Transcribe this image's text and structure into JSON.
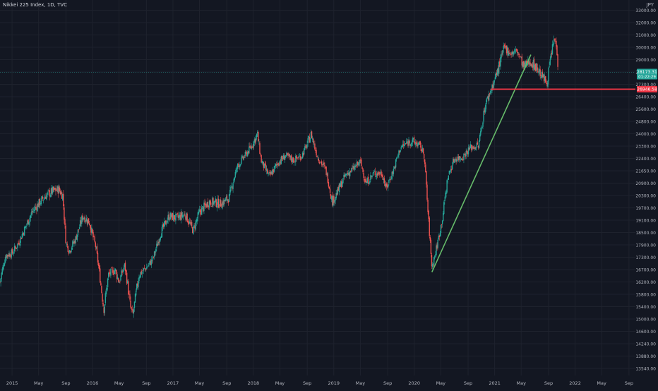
{
  "header": {
    "title": "Nikkei 225 Index, 1D, TVC",
    "currency": "JPY"
  },
  "colors": {
    "background": "#131722",
    "grid": "#1e222d",
    "axis_text": "#b2b5be",
    "candle_up": "#26a69a",
    "candle_down": "#ef5350",
    "support_line": "#f23645",
    "trend_line": "#66bb6a",
    "last_price_bg": "#26a69a"
  },
  "chart_data": {
    "type": "candlestick",
    "symbol": "Nikkei 225 Index",
    "interval": "1D",
    "source": "TVC",
    "currency": "JPY",
    "x_range": [
      2014.85,
      2022.75
    ],
    "y_range": [
      13500,
      33500
    ],
    "x_ticks": [
      {
        "t": 2015.0,
        "label": "2015"
      },
      {
        "t": 2015.33,
        "label": "May"
      },
      {
        "t": 2015.67,
        "label": "Sep"
      },
      {
        "t": 2016.0,
        "label": "2016"
      },
      {
        "t": 2016.33,
        "label": "May"
      },
      {
        "t": 2016.67,
        "label": "Sep"
      },
      {
        "t": 2017.0,
        "label": "2017"
      },
      {
        "t": 2017.33,
        "label": "May"
      },
      {
        "t": 2017.67,
        "label": "Sep"
      },
      {
        "t": 2018.0,
        "label": "2018"
      },
      {
        "t": 2018.33,
        "label": "May"
      },
      {
        "t": 2018.67,
        "label": "Sep"
      },
      {
        "t": 2019.0,
        "label": "2019"
      },
      {
        "t": 2019.33,
        "label": "May"
      },
      {
        "t": 2019.67,
        "label": "Sep"
      },
      {
        "t": 2020.0,
        "label": "2020"
      },
      {
        "t": 2020.33,
        "label": "May"
      },
      {
        "t": 2020.67,
        "label": "Sep"
      },
      {
        "t": 2021.0,
        "label": "2021"
      },
      {
        "t": 2021.33,
        "label": "May"
      },
      {
        "t": 2021.67,
        "label": "Sep"
      },
      {
        "t": 2022.0,
        "label": "2022"
      },
      {
        "t": 2022.33,
        "label": "May"
      },
      {
        "t": 2022.67,
        "label": "Sep"
      }
    ],
    "y_ticks": [
      {
        "v": 13540,
        "label": "13540.00"
      },
      {
        "v": 13880,
        "label": "13880.00"
      },
      {
        "v": 14240,
        "label": "14240.00"
      },
      {
        "v": 14600,
        "label": "14600.00"
      },
      {
        "v": 15000,
        "label": "15000.00"
      },
      {
        "v": 15400,
        "label": "15400.00"
      },
      {
        "v": 15800,
        "label": "15800.00"
      },
      {
        "v": 16200,
        "label": "16200.00"
      },
      {
        "v": 16700,
        "label": "16700.00"
      },
      {
        "v": 17300,
        "label": "17300.00"
      },
      {
        "v": 17900,
        "label": "17900.00"
      },
      {
        "v": 18500,
        "label": "18500.00"
      },
      {
        "v": 19100,
        "label": "19100.00"
      },
      {
        "v": 19700,
        "label": "19700.00"
      },
      {
        "v": 20300,
        "label": "20300.00"
      },
      {
        "v": 20900,
        "label": "20900.00"
      },
      {
        "v": 21650,
        "label": "21650.00"
      },
      {
        "v": 22400,
        "label": "22400.00"
      },
      {
        "v": 23300,
        "label": "23300.00"
      },
      {
        "v": 24000,
        "label": "24000.00"
      },
      {
        "v": 24800,
        "label": "24800.00"
      },
      {
        "v": 25600,
        "label": "25600.00"
      },
      {
        "v": 26400,
        "label": "26400.00"
      },
      {
        "v": 27300,
        "label": "27300.00"
      },
      {
        "v": 28200,
        "label": "28200.00"
      },
      {
        "v": 29000,
        "label": "29000.00"
      },
      {
        "v": 30000,
        "label": "30000.00"
      },
      {
        "v": 31000,
        "label": "31000.00"
      },
      {
        "v": 32000,
        "label": "32000.00"
      },
      {
        "v": 33000,
        "label": "33000.00"
      }
    ],
    "price_path": [
      [
        2014.85,
        16200
      ],
      [
        2014.92,
        17400
      ],
      [
        2015.0,
        17500
      ],
      [
        2015.08,
        18000
      ],
      [
        2015.17,
        18800
      ],
      [
        2015.25,
        19500
      ],
      [
        2015.33,
        19900
      ],
      [
        2015.42,
        20300
      ],
      [
        2015.5,
        20500
      ],
      [
        2015.58,
        20600
      ],
      [
        2015.63,
        20300
      ],
      [
        2015.67,
        18000
      ],
      [
        2015.71,
        17600
      ],
      [
        2015.79,
        18200
      ],
      [
        2015.88,
        19300
      ],
      [
        2015.96,
        19000
      ],
      [
        2016.04,
        17800
      ],
      [
        2016.1,
        16200
      ],
      [
        2016.14,
        15300
      ],
      [
        2016.2,
        16500
      ],
      [
        2016.28,
        16700
      ],
      [
        2016.33,
        16200
      ],
      [
        2016.4,
        16900
      ],
      [
        2016.47,
        15400
      ],
      [
        2016.5,
        15100
      ],
      [
        2016.58,
        16500
      ],
      [
        2016.67,
        16800
      ],
      [
        2016.75,
        17200
      ],
      [
        2016.85,
        18500
      ],
      [
        2016.95,
        19300
      ],
      [
        2017.05,
        19200
      ],
      [
        2017.15,
        19400
      ],
      [
        2017.25,
        18600
      ],
      [
        2017.33,
        19500
      ],
      [
        2017.45,
        20000
      ],
      [
        2017.6,
        19900
      ],
      [
        2017.7,
        20200
      ],
      [
        2017.8,
        21900
      ],
      [
        2017.92,
        22800
      ],
      [
        2018.0,
        23500
      ],
      [
        2018.05,
        24000
      ],
      [
        2018.1,
        22200
      ],
      [
        2018.2,
        21300
      ],
      [
        2018.3,
        22100
      ],
      [
        2018.4,
        22600
      ],
      [
        2018.5,
        22300
      ],
      [
        2018.6,
        22600
      ],
      [
        2018.72,
        24000
      ],
      [
        2018.8,
        22500
      ],
      [
        2018.9,
        21700
      ],
      [
        2018.98,
        20000
      ],
      [
        2019.05,
        20500
      ],
      [
        2019.15,
        21400
      ],
      [
        2019.25,
        21800
      ],
      [
        2019.33,
        22200
      ],
      [
        2019.4,
        20900
      ],
      [
        2019.5,
        21500
      ],
      [
        2019.6,
        21500
      ],
      [
        2019.65,
        20600
      ],
      [
        2019.75,
        21800
      ],
      [
        2019.83,
        23200
      ],
      [
        2019.95,
        23600
      ],
      [
        2020.05,
        23400
      ],
      [
        2020.12,
        22800
      ],
      [
        2020.17,
        19500
      ],
      [
        2020.22,
        16800
      ],
      [
        2020.28,
        17800
      ],
      [
        2020.35,
        19200
      ],
      [
        2020.42,
        21300
      ],
      [
        2020.5,
        22400
      ],
      [
        2020.6,
        22500
      ],
      [
        2020.7,
        23200
      ],
      [
        2020.8,
        23300
      ],
      [
        2020.88,
        25800
      ],
      [
        2020.96,
        27000
      ],
      [
        2021.05,
        28500
      ],
      [
        2021.12,
        30000
      ],
      [
        2021.2,
        29500
      ],
      [
        2021.28,
        29700
      ],
      [
        2021.36,
        28500
      ],
      [
        2021.44,
        28900
      ],
      [
        2021.52,
        28500
      ],
      [
        2021.6,
        27800
      ],
      [
        2021.65,
        27400
      ],
      [
        2021.7,
        29300
      ],
      [
        2021.74,
        30700
      ],
      [
        2021.77,
        30100
      ],
      [
        2021.79,
        28400
      ]
    ],
    "support_line": {
      "value": 26946.58,
      "label": "26946.58",
      "from_t": 2020.95
    },
    "trend_line": {
      "from": [
        2020.22,
        16600
      ],
      "to": [
        2021.45,
        29400
      ]
    },
    "last_price": {
      "value": 28173.31,
      "label": "28173.31",
      "countdown": "01:22:29"
    }
  }
}
